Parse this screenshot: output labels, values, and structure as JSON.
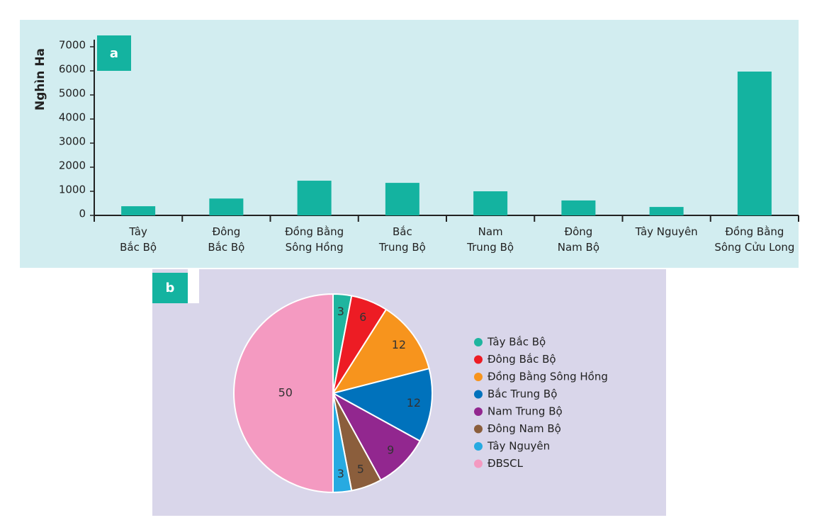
{
  "chart_data": [
    {
      "type": "bar",
      "panel_label": "a",
      "y_label": "Nghìn Ha",
      "categories": [
        "Tây\nBắc Bộ",
        "Đông\nBắc Bộ",
        "Đồng Bằng\nSông Hồng",
        "Bắc\nTrung Bộ",
        "Nam\nTrung Bộ",
        "Đông\nNam Bộ",
        "Tây Nguyên",
        "Đồng Bằng\nSông Cửu Long"
      ],
      "values": [
        380,
        700,
        1440,
        1350,
        1000,
        620,
        350,
        5970
      ],
      "color": "#14b3a0",
      "ylim": [
        0,
        7000
      ],
      "yticks": [
        0,
        1000,
        2000,
        3000,
        4000,
        5000,
        6000,
        7000
      ]
    },
    {
      "type": "pie",
      "panel_label": "b",
      "categories": [
        "Tây Bắc Bộ",
        "Đông Bắc Bộ",
        "Đồng Bằng Sông Hồng",
        "Bắc Trung Bộ",
        "Nam Trung Bộ",
        "Đông Nam Bộ",
        "Tây Nguyên",
        "ĐBSCL"
      ],
      "values": [
        3,
        6,
        12,
        12,
        9,
        5,
        3,
        50
      ],
      "colors": [
        "#1fb59f",
        "#ed1c24",
        "#f7941d",
        "#0072bc",
        "#92278f",
        "#8b5e3c",
        "#27aae1",
        "#f49ac1"
      ]
    }
  ]
}
